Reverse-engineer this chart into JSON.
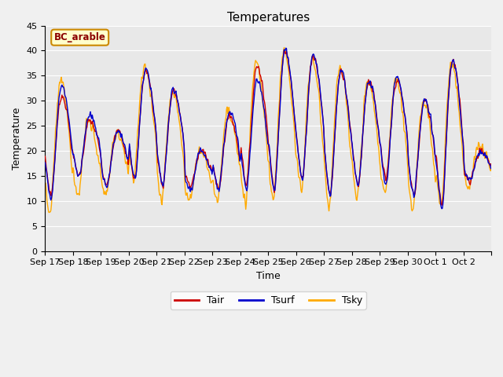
{
  "title": "Temperatures",
  "xlabel": "Time",
  "ylabel": "Temperature",
  "ylim": [
    0,
    45
  ],
  "yticks": [
    0,
    5,
    10,
    15,
    20,
    25,
    30,
    35,
    40,
    45
  ],
  "color_tair": "#cc0000",
  "color_tsurf": "#0000cc",
  "color_tsky": "#ffaa00",
  "legend_label": "BC_arable",
  "legend_box_facecolor": "#ffffcc",
  "legend_box_edge": "#cc8800",
  "line_width": 1.0,
  "date_labels": [
    "Sep 17",
    "Sep 18",
    "Sep 19",
    "Sep 20",
    "Sep 21",
    "Sep 22",
    "Sep 23",
    "Sep 24",
    "Sep 25",
    "Sep 26",
    "Sep 27",
    "Sep 28",
    "Sep 29",
    "Sep 30",
    "Oct 1",
    "Oct 2"
  ],
  "fig_bg": "#f0f0f0",
  "plot_bg": "#e8e8e8",
  "figsize": [
    6.4,
    4.8
  ],
  "dpi": 100
}
